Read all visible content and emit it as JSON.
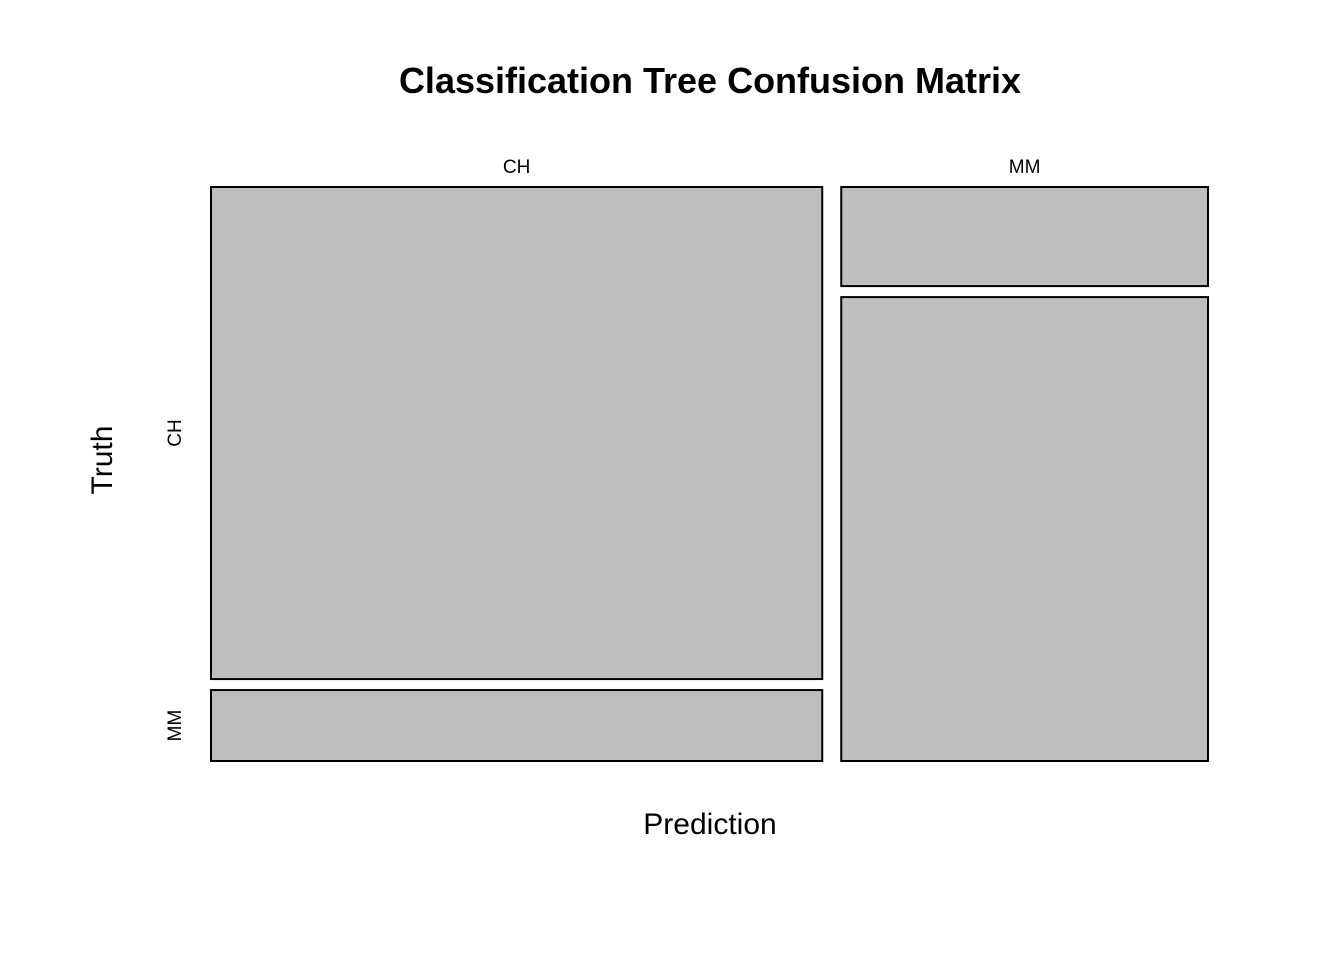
{
  "chart_data": {
    "type": "mosaic",
    "title": "Classification Tree Confusion Matrix",
    "xlabel": "Prediction",
    "ylabel": "Truth",
    "x_categories": [
      "CH",
      "MM"
    ],
    "y_categories": [
      "CH",
      "MM"
    ],
    "column_proportions": [
      0.625,
      0.375
    ],
    "cells": [
      {
        "prediction": "CH",
        "truth": "CH",
        "proportion_within_prediction": 0.874
      },
      {
        "prediction": "CH",
        "truth": "MM",
        "proportion_within_prediction": 0.126
      },
      {
        "prediction": "MM",
        "truth": "CH",
        "proportion_within_prediction": 0.176
      },
      {
        "prediction": "MM",
        "truth": "MM",
        "proportion_within_prediction": 0.824
      }
    ],
    "tile_color": "#bebebe",
    "border_color": "#000000",
    "grid": false,
    "legend": "none"
  }
}
